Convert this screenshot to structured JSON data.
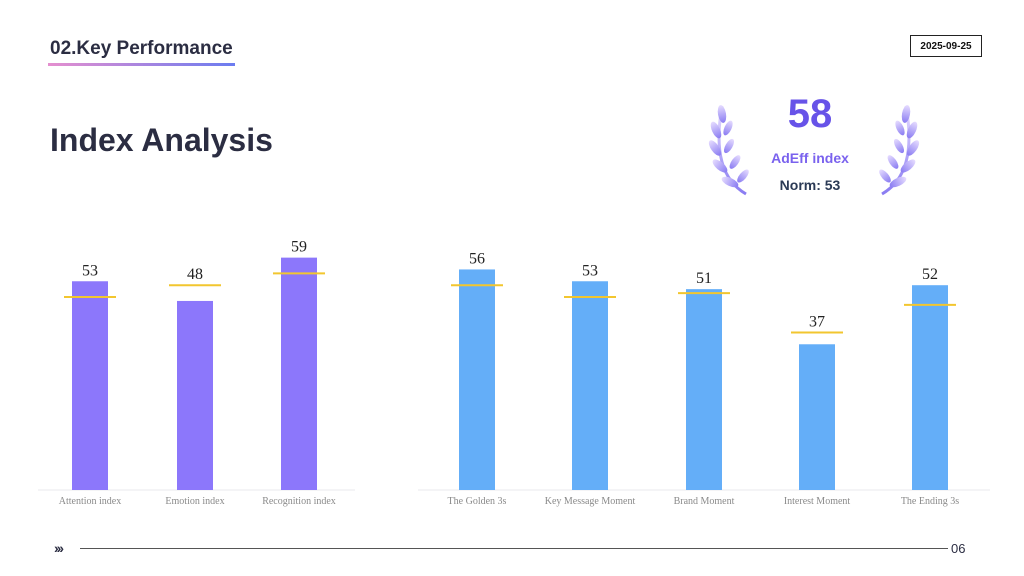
{
  "header": {
    "section": "02.Key Performance",
    "date": "2025-09-25",
    "title": "Index Analysis"
  },
  "score": {
    "value": "58",
    "label": "AdEff index",
    "norm": "Norm: 53"
  },
  "colors": {
    "purple_bar": "#8c77fb",
    "blue_bar": "#64aef8",
    "norm_line": "#f2c62f",
    "accent": "#6753e8"
  },
  "chart_data": [
    {
      "type": "bar",
      "categories": [
        "Attention index",
        "Emotion index",
        "Recognition index"
      ],
      "values": [
        53,
        48,
        59
      ],
      "norms": [
        49,
        52,
        55
      ],
      "ylim": [
        0,
        65
      ],
      "color": "#8c77fb"
    },
    {
      "type": "bar",
      "categories": [
        "The Golden 3s",
        "Key Message Moment",
        "Brand Moment",
        "Interest Moment",
        "The Ending 3s"
      ],
      "values": [
        56,
        53,
        51,
        37,
        52
      ],
      "norms": [
        52,
        49,
        50,
        40,
        47
      ],
      "ylim": [
        0,
        65
      ],
      "color": "#64aef8"
    }
  ],
  "footer": {
    "arrows": "›››",
    "page": "06"
  }
}
